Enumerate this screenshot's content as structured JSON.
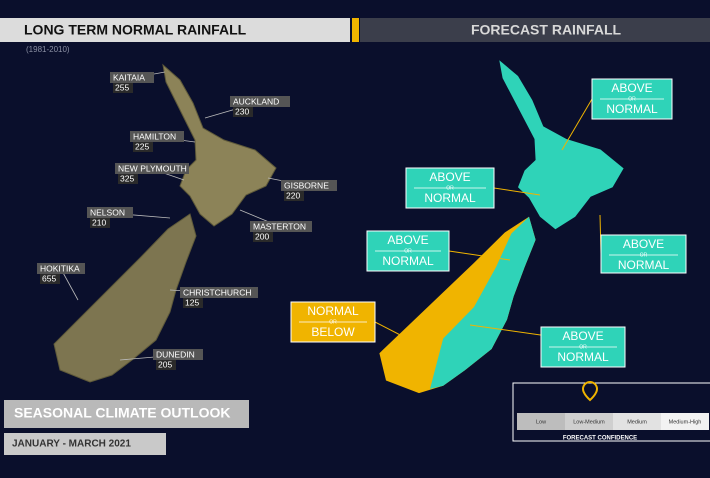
{
  "left": {
    "title": "LONG TERM NORMAL RAINFALL",
    "subtitle": "(1981-2010)",
    "locations": [
      {
        "name": "KAITAIA",
        "value": 255
      },
      {
        "name": "AUCKLAND",
        "value": 230
      },
      {
        "name": "HAMILTON",
        "value": 225
      },
      {
        "name": "NEW PLYMOUTH",
        "value": 325
      },
      {
        "name": "GISBORNE",
        "value": 220
      },
      {
        "name": "NELSON",
        "value": 210
      },
      {
        "name": "MASTERTON",
        "value": 200
      },
      {
        "name": "HOKITIKA",
        "value": 655
      },
      {
        "name": "CHRISTCHURCH",
        "value": 125
      },
      {
        "name": "DUNEDIN",
        "value": 205
      }
    ]
  },
  "right": {
    "title": "FORECAST RAINFALL",
    "regions": [
      {
        "top": "ABOVE",
        "mid": "OR",
        "bottom": "NORMAL"
      },
      {
        "top": "ABOVE",
        "mid": "OR",
        "bottom": "NORMAL"
      },
      {
        "top": "ABOVE",
        "mid": "OR",
        "bottom": "NORMAL"
      },
      {
        "top": "ABOVE",
        "mid": "OR",
        "bottom": "NORMAL"
      },
      {
        "top": "NORMAL",
        "mid": "OR",
        "bottom": "BELOW"
      },
      {
        "top": "ABOVE",
        "mid": "OR",
        "bottom": "NORMAL"
      }
    ]
  },
  "footer": {
    "title": "SEASONAL CLIMATE OUTLOOK",
    "period": "JANUARY - MARCH 2021"
  },
  "confidence": {
    "levels": [
      "Low",
      "Low-Medium",
      "Medium",
      "Medium-High"
    ],
    "label": "FORECAST CONFIDENCE"
  }
}
